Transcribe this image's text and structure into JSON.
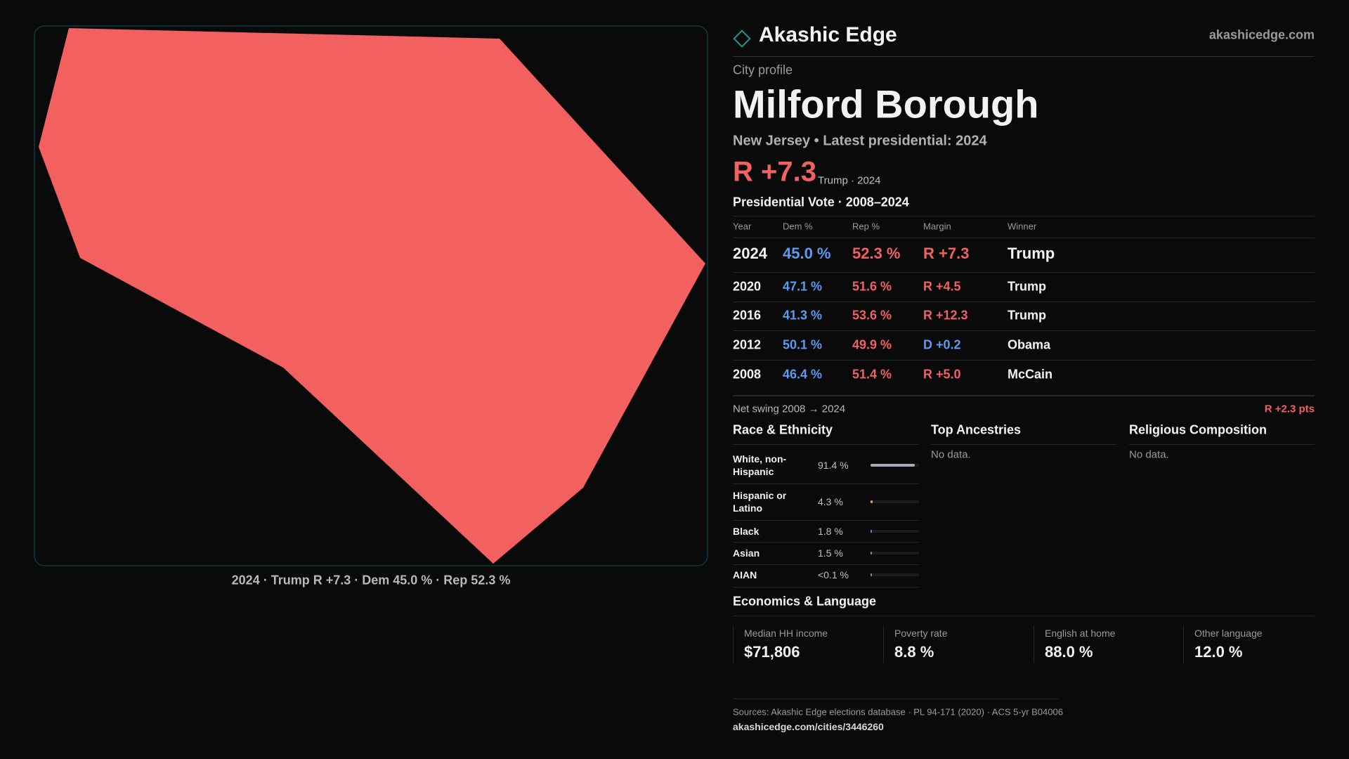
{
  "header": {
    "brand": "Akashic Edge",
    "site": "akashicedge.com"
  },
  "profile": {
    "kicker": "City profile",
    "title": "Milford Borough",
    "subtitle": "New Jersey • Latest presidential: 2024",
    "margin": "R +7.3",
    "margin_note": "Trump · 2024"
  },
  "map": {
    "caption": "2024 · Trump R +7.3 · Dem 45.0 % · Rep 52.3 %"
  },
  "votes": {
    "title": "Presidential Vote · 2008–2024",
    "columns": [
      "Year",
      "Dem %",
      "Rep %",
      "Margin",
      "Winner"
    ],
    "rows": [
      [
        "2024",
        "45.0 %",
        "52.3 %",
        "R +7.3",
        "Trump"
      ],
      [
        "2020",
        "47.1 %",
        "51.6 %",
        "R +4.5",
        "Trump"
      ],
      [
        "2016",
        "41.3 %",
        "53.6 %",
        "R +12.3",
        "Trump"
      ],
      [
        "2012",
        "50.1 %",
        "49.9 %",
        "D +0.2",
        "Obama"
      ],
      [
        "2008",
        "46.4 %",
        "51.4 %",
        "R +5.0",
        "McCain"
      ]
    ]
  },
  "swing": {
    "label": "Net swing 2008 → 2024",
    "value": "R +2.3 pts"
  },
  "race": {
    "title": "Race & Ethnicity",
    "rows": [
      {
        "label": "White, non-Hispanic",
        "value": 91.4,
        "value_label": "91.4 %",
        "color": "#a3abbd"
      },
      {
        "label": "Hispanic or Latino",
        "value": 4.3,
        "value_label": "4.3 %",
        "color": "#f0a030"
      },
      {
        "label": "Black",
        "value": 1.8,
        "value_label": "1.8 %",
        "color": "#8a70e0"
      },
      {
        "label": "Asian",
        "value": 1.5,
        "value_label": "1.5 %",
        "color": "#8d8d8d"
      },
      {
        "label": "AIAN",
        "value": 0,
        "value_label": "<0.1 %",
        "color": "#8d8d8d"
      }
    ]
  },
  "ancestries": {
    "title": "Top Ancestries",
    "note": "No data."
  },
  "religion": {
    "title": "Religious Composition",
    "note": "No data."
  },
  "economics": {
    "title": "Economics & Language",
    "stats": [
      {
        "label": "Median HH income",
        "value": "$71,806"
      },
      {
        "label": "Poverty rate",
        "value": "8.8 %"
      },
      {
        "label": "English at home",
        "value": "88.0 %"
      },
      {
        "label": "Other language",
        "value": "12.0 %"
      }
    ]
  },
  "footer": {
    "sources": "Sources: Akashic Edge elections database · PL 94-171 (2020) · ACS 5-yr B04006",
    "url": "akashicedge.com/cities/3446260"
  }
}
